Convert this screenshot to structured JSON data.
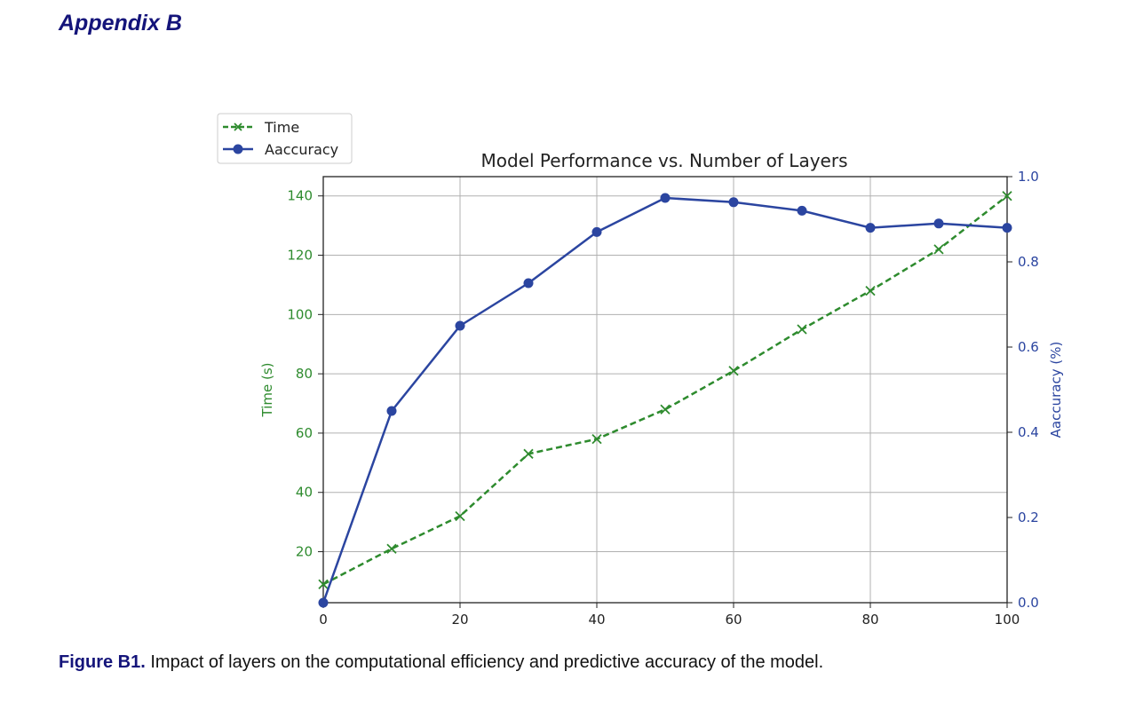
{
  "heading": "Appendix B",
  "caption": {
    "label": "Figure B1.",
    "text": " Impact of layers on the computational efficiency and predictive accuracy of the model."
  },
  "chart_data": {
    "type": "line",
    "title": "Model Performance vs. Number of Layers",
    "x": [
      0,
      10,
      20,
      30,
      40,
      50,
      60,
      70,
      80,
      90,
      100
    ],
    "xlim": [
      0,
      100
    ],
    "xticks": [
      0,
      20,
      40,
      60,
      80,
      100
    ],
    "grid": true,
    "legend_position": "top-left, outside plot",
    "series": [
      {
        "name": "Time",
        "axis": "left",
        "style": "dashed",
        "marker": "x",
        "color": "#2e8b2e",
        "values": [
          9,
          21,
          32,
          53,
          58,
          68,
          81,
          95,
          108,
          122,
          140
        ]
      },
      {
        "name": "Aaccuracy",
        "axis": "right",
        "style": "solid",
        "marker": "o",
        "color": "#2b45a0",
        "values": [
          0.0,
          0.45,
          0.65,
          0.75,
          0.87,
          0.95,
          0.94,
          0.92,
          0.88,
          0.89,
          0.88
        ]
      }
    ],
    "y_left": {
      "label": "Time (s)",
      "range": [
        2.8,
        146.5
      ],
      "ticks": [
        20,
        40,
        60,
        80,
        100,
        120,
        140
      ],
      "color": "#2e8b2e"
    },
    "y_right": {
      "label": "Aaccuracy (%)",
      "range": [
        0.0,
        1.0
      ],
      "ticks": [
        "0.0",
        "0.2",
        "0.4",
        "0.6",
        "0.8",
        "1.0"
      ],
      "color": "#2b45a0"
    }
  }
}
